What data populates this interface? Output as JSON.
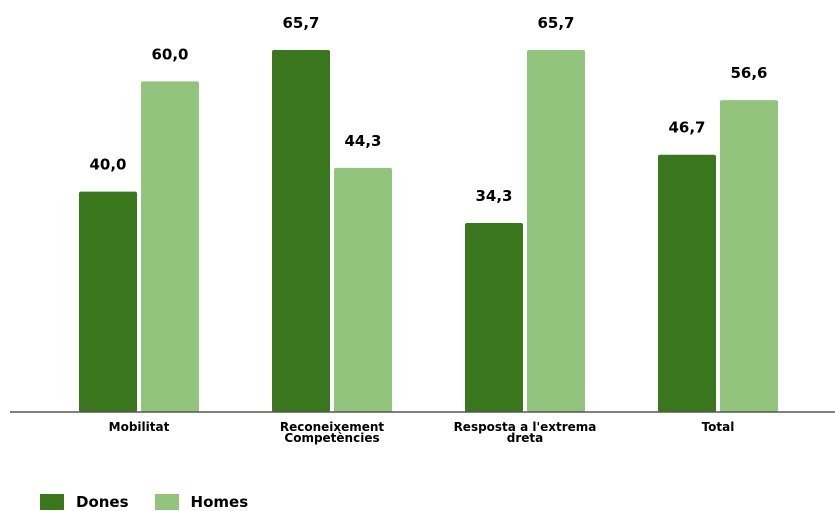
{
  "chart_data": {
    "type": "bar",
    "categories": [
      [
        "Mobilitat"
      ],
      [
        "Reconeixement",
        "Competències"
      ],
      [
        "Resposta a l'extrema",
        "dreta"
      ],
      [
        "Total"
      ]
    ],
    "series": [
      {
        "name": "Dones",
        "color": "#3a761d",
        "values": [
          40.0,
          65.7,
          34.3,
          46.7
        ],
        "labels": [
          "40,0",
          "65,7",
          "34,3",
          "46,7"
        ]
      },
      {
        "name": "Homes",
        "color": "#93c47d",
        "values": [
          60.0,
          44.3,
          65.7,
          56.6
        ],
        "labels": [
          "60,0",
          "44,3",
          "65,7",
          "56,6"
        ]
      }
    ],
    "ylim": [
      0,
      70
    ],
    "grid": false,
    "legend_position": "bottom-left"
  }
}
